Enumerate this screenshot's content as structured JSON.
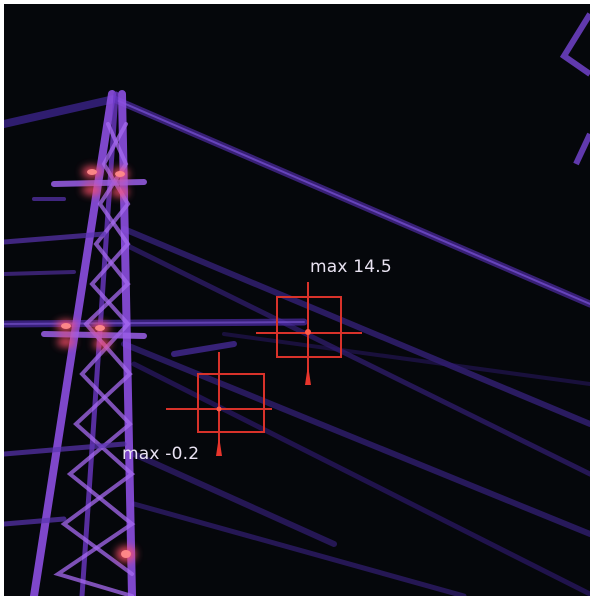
{
  "overlay_colors": {
    "marker_red": "#d8322a",
    "background": "#05070b",
    "structure_purple": "#6b34c8",
    "hotspot": "#ff5a4a"
  },
  "measurements": [
    {
      "label": "max 14.5"
    },
    {
      "label": "max -0.2"
    }
  ]
}
